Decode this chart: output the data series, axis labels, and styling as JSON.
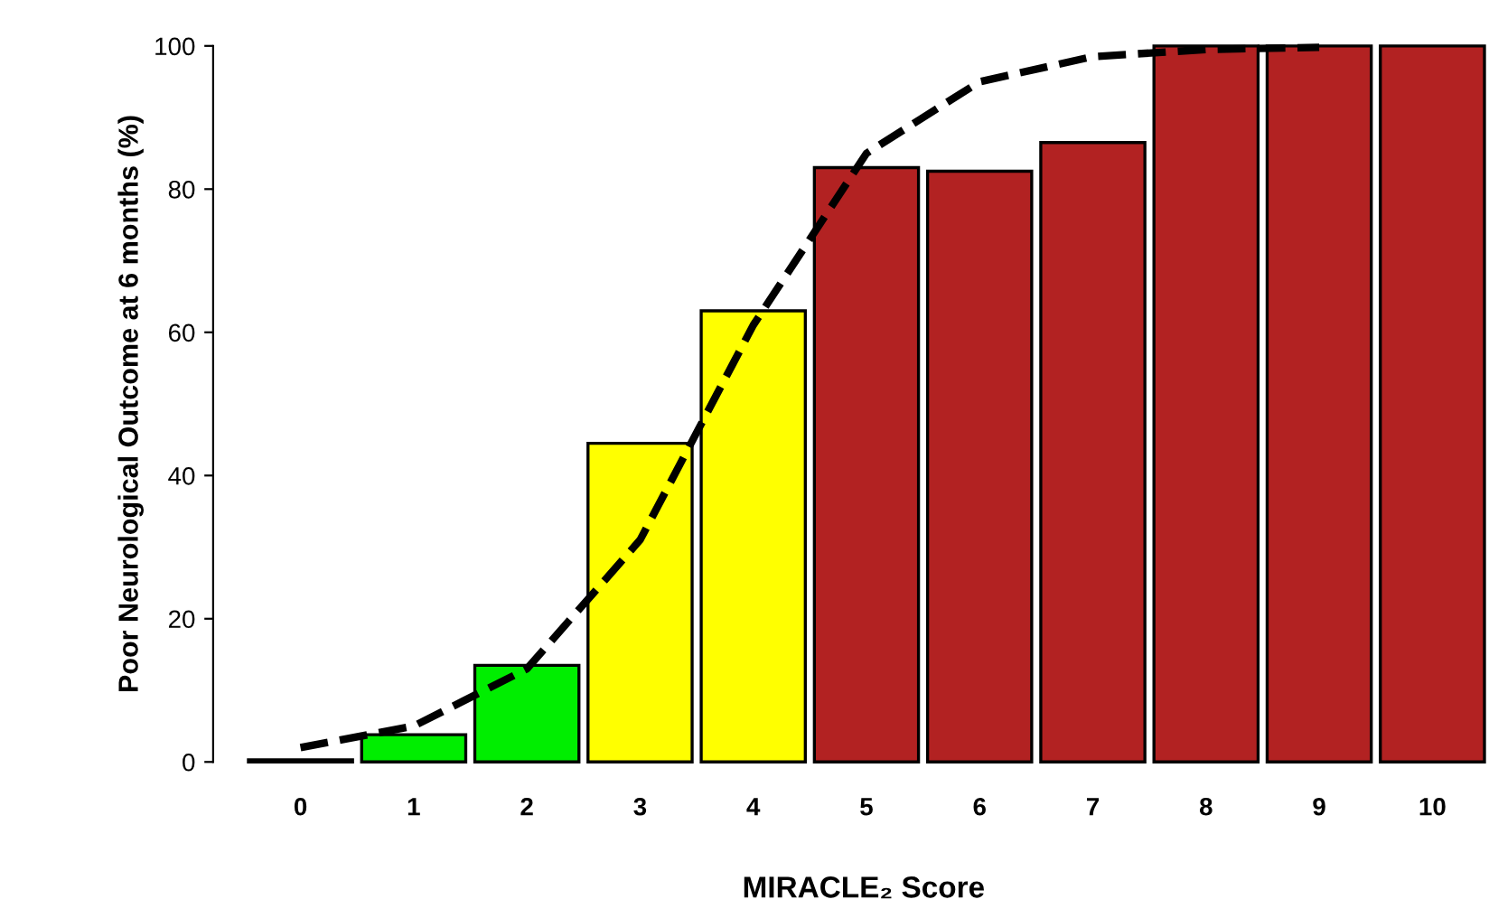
{
  "chart_data": {
    "type": "bar",
    "xlabel": "MIRACLE₂ Score",
    "ylabel": "Poor Neurological Outcome at 6 months (%)",
    "categories": [
      "0",
      "1",
      "2",
      "3",
      "4",
      "5",
      "6",
      "7",
      "8",
      "9",
      "10"
    ],
    "ylim": [
      0,
      100
    ],
    "yticks": [
      0,
      20,
      40,
      60,
      80,
      100
    ],
    "grid": false,
    "legend": false,
    "series": [
      {
        "values": [
          0.3,
          3.8,
          13.5,
          44.5,
          63,
          83,
          82.5,
          86.5,
          100,
          100,
          100
        ],
        "colors": [
          "#ffffff",
          "#00ee00",
          "#00ee00",
          "#ffff00",
          "#ffff00",
          "#b22222",
          "#b22222",
          "#b22222",
          "#b22222",
          "#b22222",
          "#b22222"
        ]
      },
      {
        "type": "line",
        "line_style": "dashed",
        "color": "#000000",
        "values": [
          2,
          5,
          13,
          31,
          61,
          85,
          95,
          98.5,
          99.5,
          99.8,
          null
        ]
      }
    ]
  }
}
